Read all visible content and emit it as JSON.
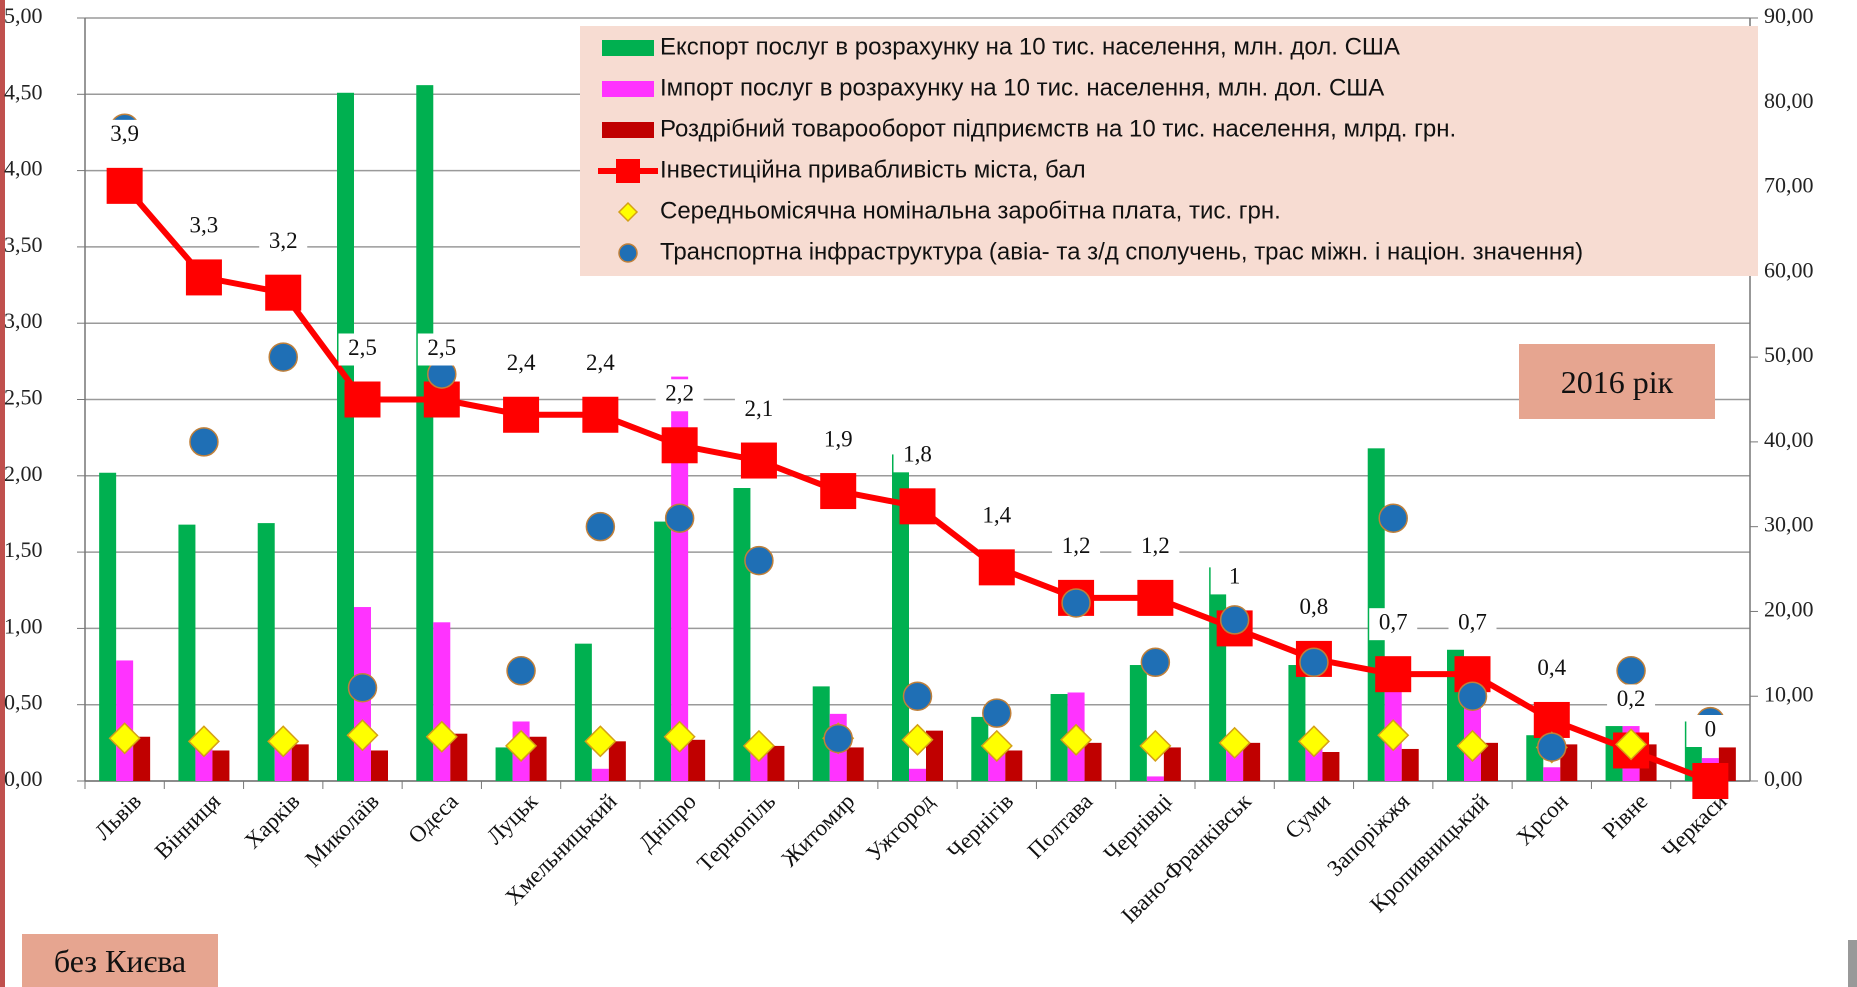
{
  "chart_data": {
    "type": "combo",
    "categories": [
      "Львів",
      "Вінниця",
      "Харків",
      "Миколаїв",
      "Одеса",
      "Луцьк",
      "Хмельницький",
      "Дніпро",
      "Тернопіль",
      "Житомир",
      "Ужгород",
      "Чернігів",
      "Полтава",
      "Чернівці",
      "Івано-Франківськ",
      "Суми",
      "Запоріжжя",
      "Кропивницький",
      "Хрсон",
      "Рівне",
      "Черкаси"
    ],
    "series": [
      {
        "name": "Експорт послуг  в розрахунку на 10 тис. населення, млн. дол. США",
        "type": "bar",
        "color": "#00b050",
        "values": [
          2.02,
          1.68,
          1.69,
          4.51,
          4.56,
          0.22,
          0.9,
          1.7,
          1.92,
          0.62,
          2.14,
          0.42,
          0.57,
          0.76,
          1.4,
          0.76,
          2.18,
          0.86,
          0.3,
          0.36,
          0.39
        ]
      },
      {
        "name": "Імпорт послуг  в розрахунку на 10 тис. населення, млн. дол. США",
        "type": "bar",
        "color": "#ff33ff",
        "values": [
          0.79,
          0.22,
          0.24,
          1.14,
          1.04,
          0.39,
          0.08,
          2.65,
          0.22,
          0.44,
          0.08,
          0.22,
          0.58,
          0.03,
          0.28,
          0.25,
          0.7,
          0.6,
          0.09,
          0.36,
          0.15
        ]
      },
      {
        "name": "Роздрібний товарооборот підприємств на 10 тис. населення, млрд. грн.",
        "type": "bar",
        "color": "#c00000",
        "values": [
          0.29,
          0.2,
          0.24,
          0.2,
          0.31,
          0.29,
          0.26,
          0.27,
          0.23,
          0.22,
          0.33,
          0.2,
          0.25,
          0.22,
          0.25,
          0.19,
          0.21,
          0.25,
          0.24,
          0.24,
          0.22
        ]
      },
      {
        "name": "Інвестиційна привабливість міста, бал",
        "type": "line",
        "color": "#ff0000",
        "values": [
          3.9,
          3.3,
          3.2,
          2.5,
          2.5,
          2.4,
          2.4,
          2.2,
          2.1,
          1.9,
          1.8,
          1.4,
          1.2,
          1.2,
          1,
          0.8,
          0.7,
          0.7,
          0.4,
          0.2,
          0
        ],
        "value_labels": [
          "3,9",
          "3,3",
          "3,2",
          "2,5",
          "2,5",
          "2,4",
          "2,4",
          "2,2",
          "2,1",
          "1,9",
          "1,8",
          "1,4",
          "1,2",
          "1,2",
          "1",
          "0,8",
          "0,7",
          "0,7",
          "0,4",
          "0,2",
          "0"
        ]
      },
      {
        "name": "Середньомісячна номінальна заробітна плата, тис. грн.",
        "type": "diamond",
        "color": "#ffff00",
        "values": [
          0.28,
          0.26,
          0.26,
          0.3,
          0.29,
          0.23,
          0.26,
          0.29,
          0.23,
          0.28,
          0.27,
          0.23,
          0.27,
          0.23,
          0.25,
          0.26,
          0.3,
          0.23,
          0.22,
          0.24,
          null
        ]
      },
      {
        "name": "Транспортна інфраструктура (авіа- та з/д сполучень, трас міжн. і націон. значення)",
        "type": "circle",
        "color": "#1f6fb5",
        "axis": "y2",
        "values": [
          77,
          40,
          50,
          11,
          48,
          13,
          30,
          31,
          26,
          5,
          10,
          8,
          21,
          14,
          19,
          14,
          31,
          10,
          4,
          13,
          7
        ]
      }
    ],
    "ylim": [
      0,
      5
    ],
    "yticks": [
      {
        "value": 0,
        "label": "0,00"
      },
      {
        "value": 0.5,
        "label": "0,50"
      },
      {
        "value": 1,
        "label": "1,00"
      },
      {
        "value": 1.5,
        "label": "1,50"
      },
      {
        "value": 2,
        "label": "2,00"
      },
      {
        "value": 2.5,
        "label": "2,50"
      },
      {
        "value": 3,
        "label": "3,00"
      },
      {
        "value": 3.5,
        "label": "3,50"
      },
      {
        "value": 4,
        "label": "4,00"
      },
      {
        "value": 4.5,
        "label": "4,50"
      },
      {
        "value": 5,
        "label": "5,00"
      }
    ],
    "y2lim": [
      0,
      90
    ],
    "y2ticks": [
      {
        "value": 0,
        "label": "0,00"
      },
      {
        "value": 10,
        "label": "10,00"
      },
      {
        "value": 20,
        "label": "20,00"
      },
      {
        "value": 30,
        "label": "30,00"
      },
      {
        "value": 40,
        "label": "40,00"
      },
      {
        "value": 50,
        "label": "50,00"
      },
      {
        "value": 60,
        "label": "60,00"
      },
      {
        "value": 70,
        "label": "70,00"
      },
      {
        "value": 80,
        "label": "80,00"
      },
      {
        "value": 90,
        "label": "90,00"
      }
    ],
    "grid": true,
    "legend": "top-right",
    "annotations": [
      "2016 рік",
      "без Києва"
    ]
  }
}
